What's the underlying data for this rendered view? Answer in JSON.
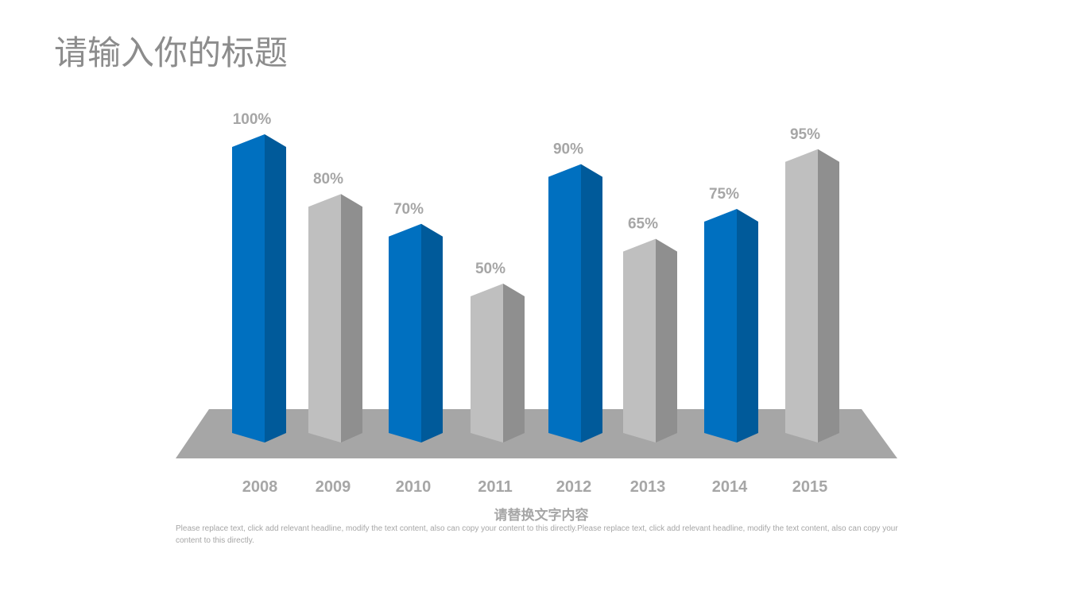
{
  "slide": {
    "title": "请输入你的标题",
    "subtitle": "请替换文字内容",
    "body_text": "Please replace text, click add relevant headline, modify the text content, also can copy your content to this directly.Please replace text, click add relevant headline, modify the text content, also can copy your content to this directly."
  },
  "colors": {
    "blue_front": "#0070C0",
    "blue_side": "#005A9A",
    "grey_front": "#BFBFBF",
    "grey_side": "#8F8F8F",
    "platform": "#A6A6A6",
    "label": "#A6A6A6",
    "title": "#8C8C8C"
  },
  "chart_data": {
    "type": "bar",
    "style": "3d-column",
    "title": "",
    "xlabel": "",
    "ylabel": "",
    "categories": [
      "2008",
      "2009",
      "2010",
      "2011",
      "2012",
      "2013",
      "2014",
      "2015"
    ],
    "values": [
      100,
      80,
      70,
      50,
      90,
      65,
      75,
      95
    ],
    "value_labels": [
      "100%",
      "80%",
      "70%",
      "50%",
      "90%",
      "65%",
      "75%",
      "95%"
    ],
    "bar_colors": [
      "blue",
      "grey",
      "blue",
      "grey",
      "blue",
      "grey",
      "blue",
      "grey"
    ],
    "unit": "%",
    "ylim": [
      0,
      100
    ],
    "grid": false,
    "legend": null
  }
}
